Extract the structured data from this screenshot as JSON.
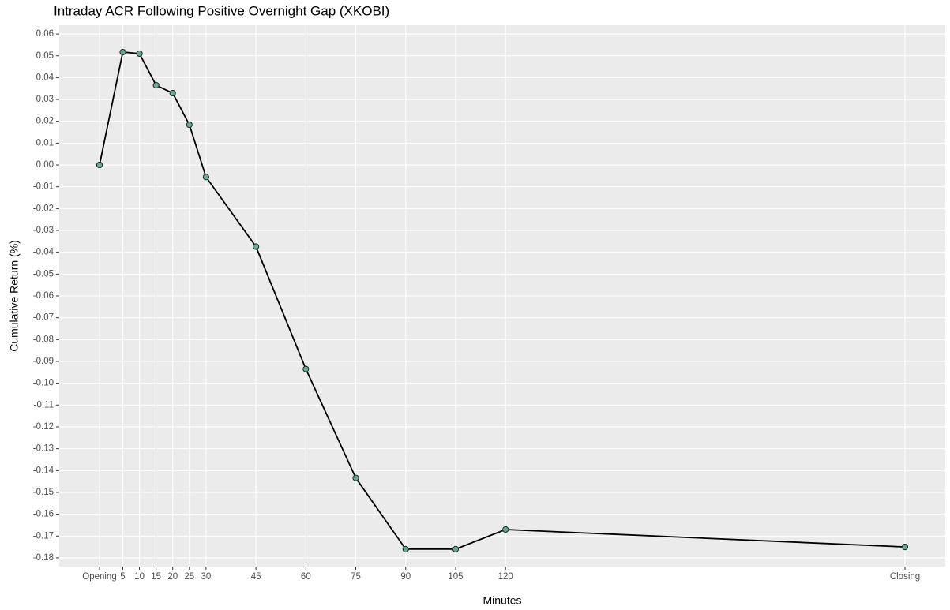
{
  "chart_data": {
    "type": "line",
    "title": "Intraday ACR Following Positive Overnight Gap (XKOBI)",
    "x_label": "Minutes",
    "y_label": "Cumulative Return (%)",
    "x": [
      -2,
      5,
      10,
      15,
      20,
      25,
      30,
      45,
      60,
      75,
      90,
      105,
      120,
      240
    ],
    "series": [
      {
        "name": "ACR",
        "color": "#000000",
        "marker_color": "#6aa895",
        "values": [
          0.0,
          0.0517,
          0.051,
          0.0365,
          0.0329,
          0.0184,
          -0.0055,
          -0.0374,
          -0.0935,
          -0.1434,
          -0.176,
          -0.176,
          -0.167,
          -0.175
        ]
      }
    ],
    "xlim": [
      -14.1,
      252.1
    ],
    "xticks": [
      {
        "value": -2,
        "label": "Opening"
      },
      5,
      10,
      15,
      20,
      25,
      30,
      45,
      60,
      75,
      90,
      105,
      120,
      {
        "value": 240,
        "label": "Closing"
      }
    ],
    "ylim": [
      -0.184,
      0.064
    ],
    "yticks": [
      0.06,
      0.05,
      0.04,
      0.03,
      0.02,
      0.01,
      {
        "value": 0,
        "label": "0.00"
      },
      -0.01,
      -0.02,
      -0.03,
      -0.04,
      -0.05,
      -0.06,
      -0.07,
      -0.08,
      -0.09,
      {
        "value": -0.1,
        "label": "-0.10"
      },
      -0.11,
      -0.12,
      -0.13,
      -0.14,
      -0.15,
      -0.16,
      -0.17,
      -0.18
    ],
    "grid": true
  }
}
